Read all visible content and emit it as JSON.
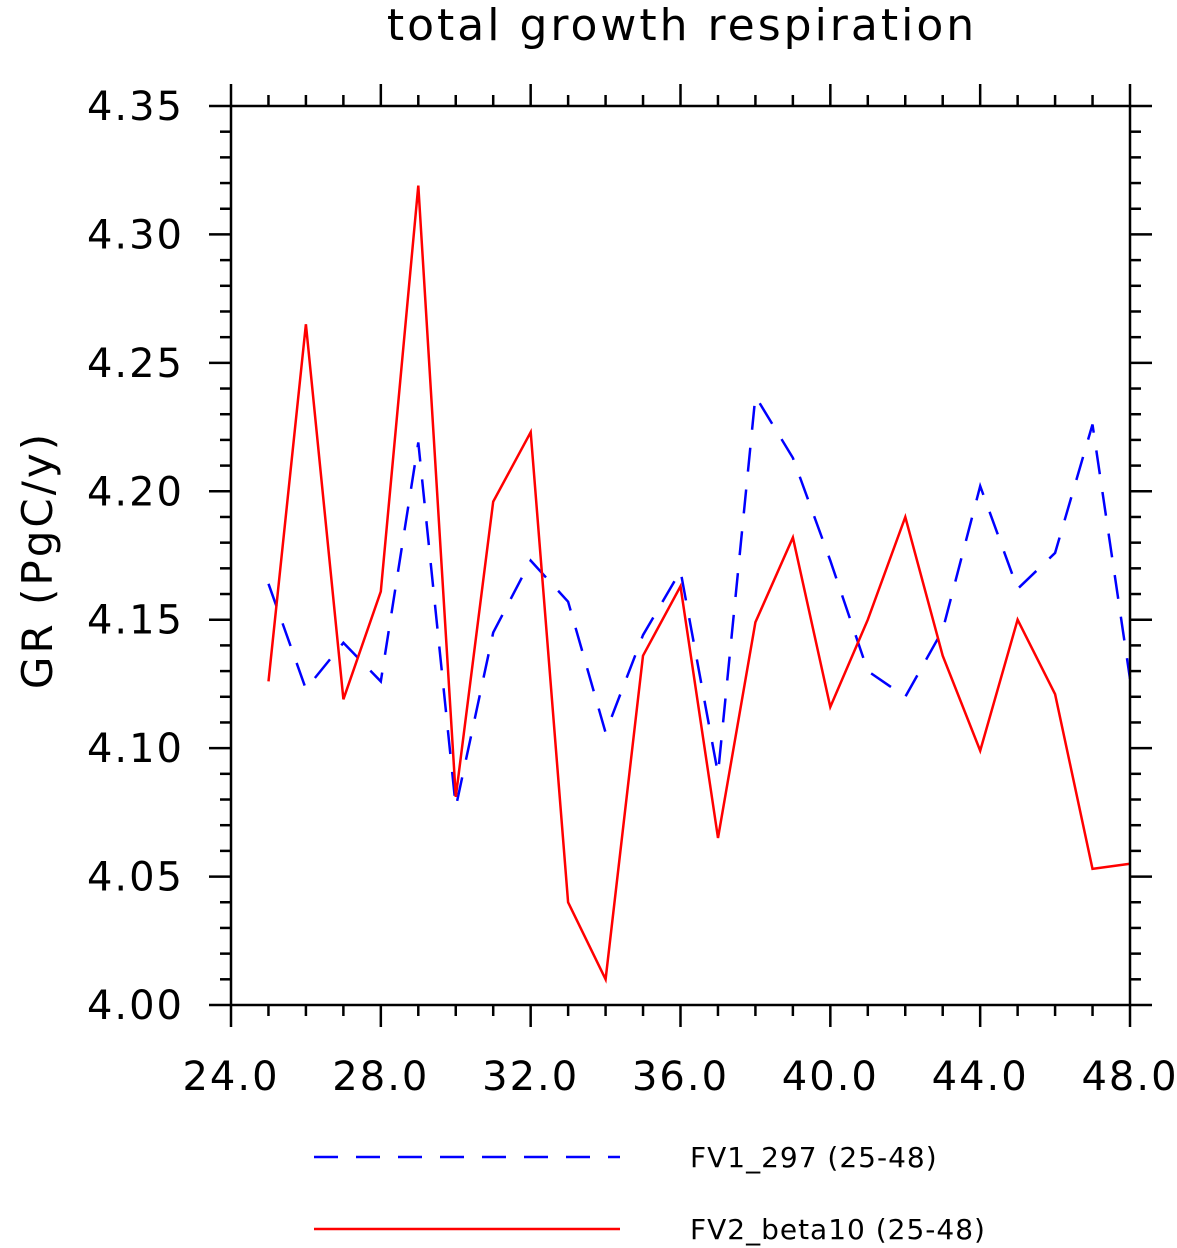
{
  "chart_data": {
    "type": "line",
    "title": "total growth respiration",
    "xlabel": "",
    "ylabel": "GR  (PgC/y)",
    "xlim": [
      24.0,
      48.0
    ],
    "ylim": [
      4.0,
      4.35
    ],
    "x_ticks": [
      24.0,
      28.0,
      32.0,
      36.0,
      40.0,
      44.0,
      48.0
    ],
    "x_tick_labels": [
      "24.0",
      "28.0",
      "32.0",
      "36.0",
      "40.0",
      "44.0",
      "48.0"
    ],
    "y_ticks": [
      4.0,
      4.05,
      4.1,
      4.15,
      4.2,
      4.25,
      4.3,
      4.35
    ],
    "y_tick_labels": [
      "4.00",
      "4.05",
      "4.10",
      "4.15",
      "4.20",
      "4.25",
      "4.30",
      "4.35"
    ],
    "x": [
      25,
      26,
      27,
      28,
      29,
      30,
      31,
      32,
      33,
      34,
      35,
      36,
      37,
      38,
      39,
      40,
      41,
      42,
      43,
      44,
      45,
      46,
      47,
      48
    ],
    "series": [
      {
        "name": "FV1_297 (25-48)",
        "color": "#0000ff",
        "style": "dashed",
        "values": [
          4.164,
          4.123,
          4.141,
          4.126,
          4.219,
          4.077,
          4.145,
          4.173,
          4.157,
          4.106,
          4.144,
          4.169,
          4.09,
          4.237,
          4.213,
          4.173,
          4.13,
          4.12,
          4.146,
          4.202,
          4.162,
          4.176,
          4.226,
          4.127
        ]
      },
      {
        "name": "FV2_beta10 (25-48)",
        "color": "#ff0000",
        "style": "solid",
        "values": [
          4.126,
          4.265,
          4.119,
          4.161,
          4.319,
          4.081,
          4.196,
          4.223,
          4.04,
          4.01,
          4.136,
          4.163,
          4.065,
          4.149,
          4.182,
          4.116,
          4.15,
          4.19,
          4.136,
          4.099,
          4.15,
          4.121,
          4.053,
          4.055
        ]
      }
    ],
    "grid": false,
    "legend_position": "bottom"
  }
}
